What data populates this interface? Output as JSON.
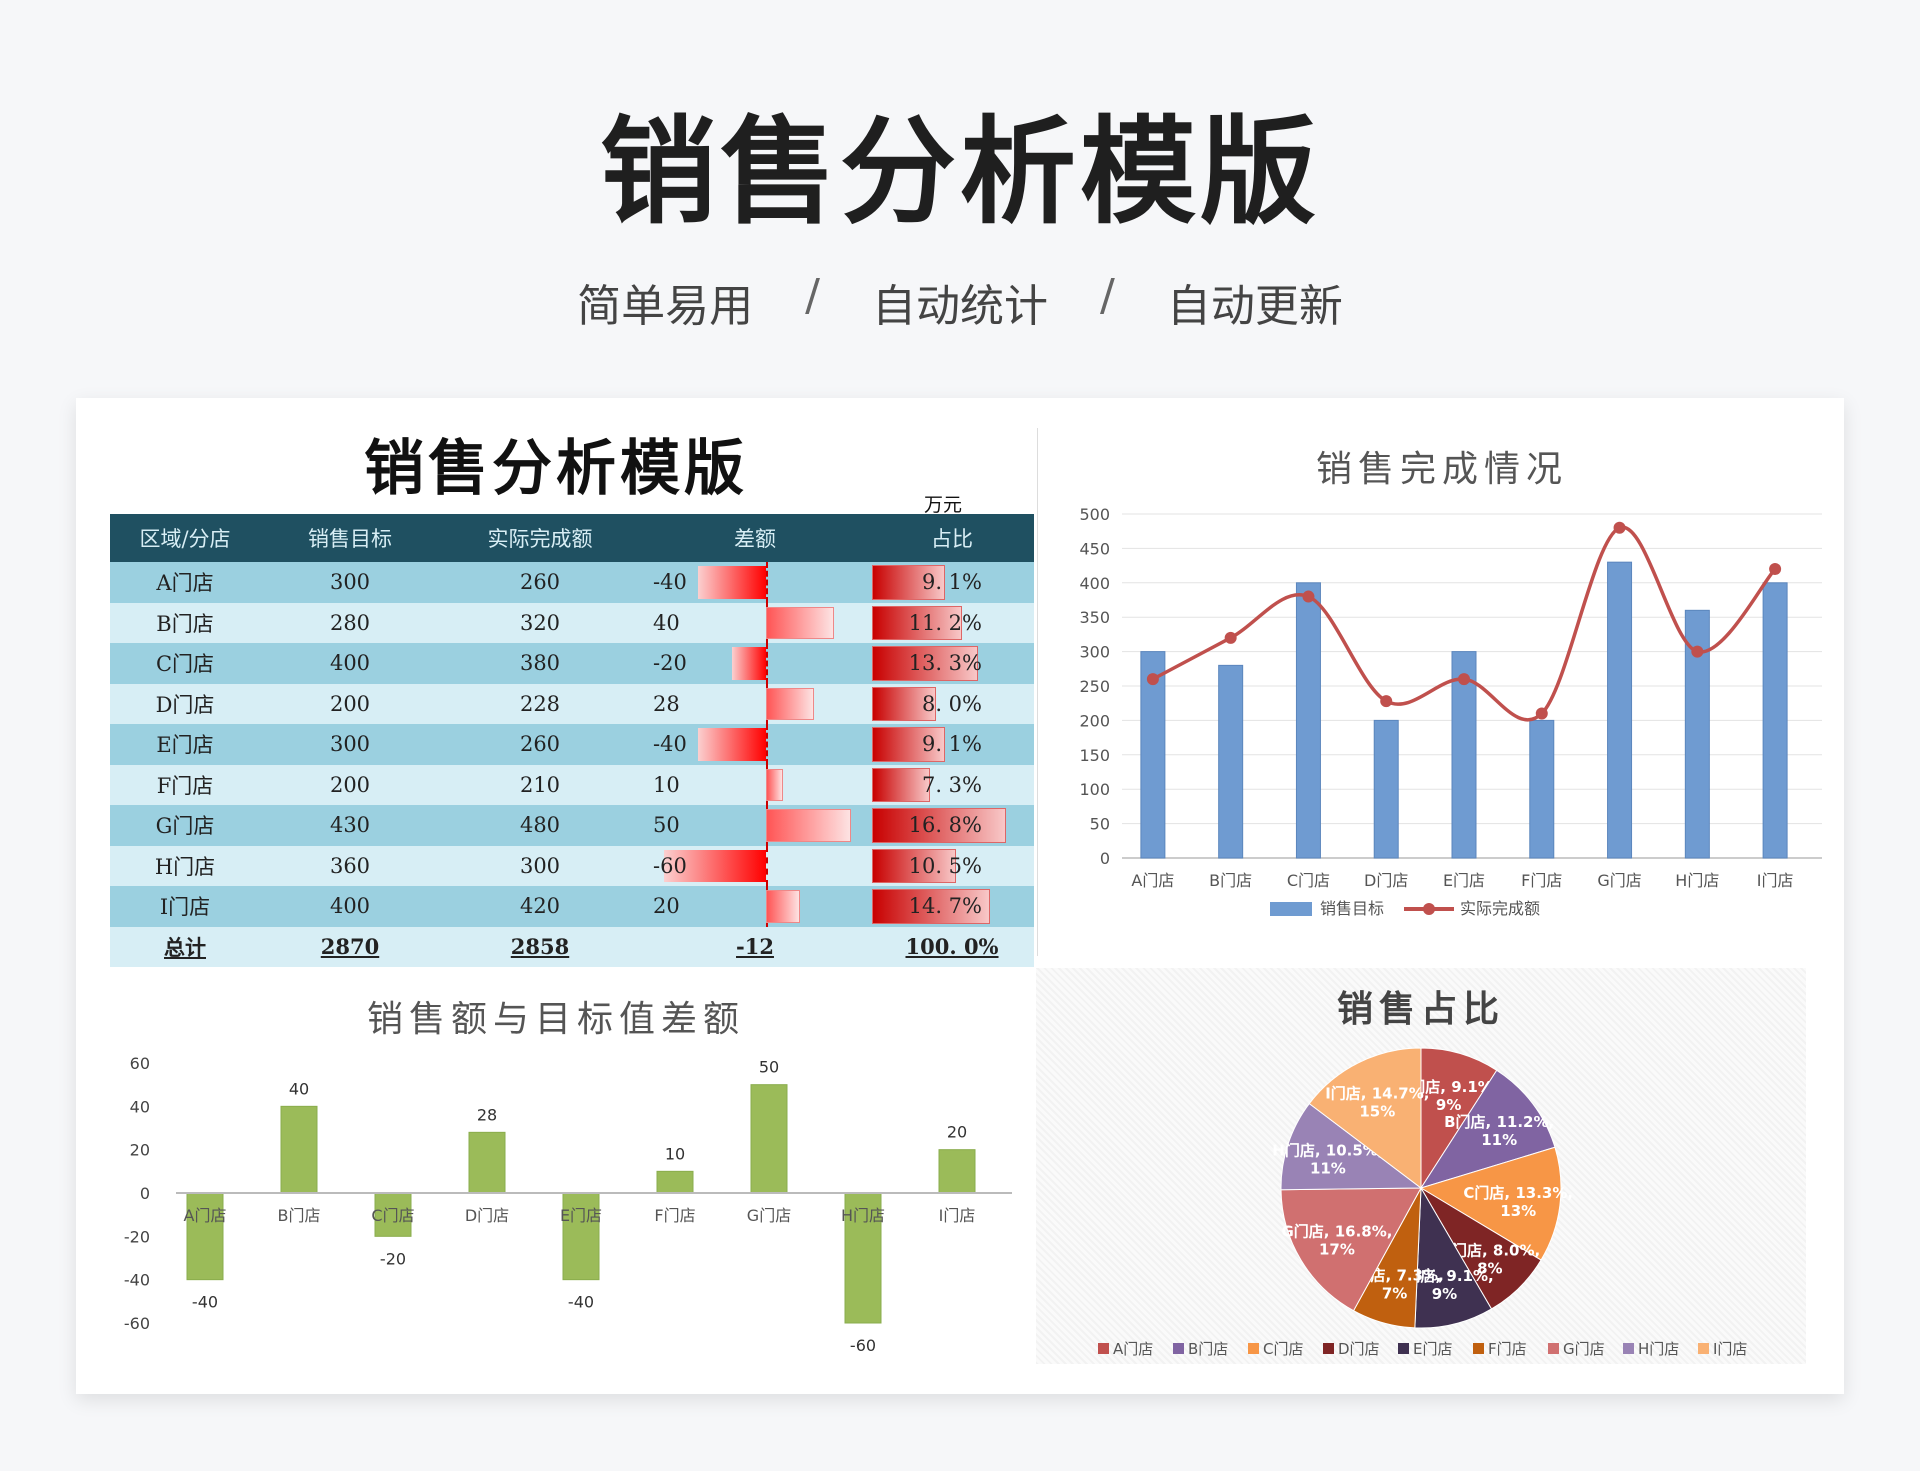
{
  "poster": {
    "title": "销售分析模版",
    "tags": [
      "简单易用",
      "自动统计",
      "自动更新"
    ],
    "separator": "/"
  },
  "sheet": {
    "title": "销售分析模版",
    "unit": "万元",
    "headers": [
      "区域/分店",
      "销售目标",
      "实际完成额",
      "差额",
      "占比"
    ],
    "rows": [
      {
        "name": "A门店",
        "target": "300",
        "actual": "260",
        "diff": "-40",
        "share": "9. 1%",
        "diff_value": -40,
        "share_value": 9.1
      },
      {
        "name": "B门店",
        "target": "280",
        "actual": "320",
        "diff": "40",
        "share": "11. 2%",
        "diff_value": 40,
        "share_value": 11.2
      },
      {
        "name": "C门店",
        "target": "400",
        "actual": "380",
        "diff": "-20",
        "share": "13. 3%",
        "diff_value": -20,
        "share_value": 13.3
      },
      {
        "name": "D门店",
        "target": "200",
        "actual": "228",
        "diff": "28",
        "share": "8. 0%",
        "diff_value": 28,
        "share_value": 8.0
      },
      {
        "name": "E门店",
        "target": "300",
        "actual": "260",
        "diff": "-40",
        "share": "9. 1%",
        "diff_value": -40,
        "share_value": 9.1
      },
      {
        "name": "F门店",
        "target": "200",
        "actual": "210",
        "diff": "10",
        "share": "7. 3%",
        "diff_value": 10,
        "share_value": 7.3
      },
      {
        "name": "G门店",
        "target": "430",
        "actual": "480",
        "diff": "50",
        "share": "16. 8%",
        "diff_value": 50,
        "share_value": 16.8
      },
      {
        "name": "H门店",
        "target": "360",
        "actual": "300",
        "diff": "-60",
        "share": "10. 5%",
        "diff_value": -60,
        "share_value": 10.5
      },
      {
        "name": "I门店",
        "target": "400",
        "actual": "420",
        "diff": "20",
        "share": "14. 7%",
        "diff_value": 20,
        "share_value": 14.7
      }
    ],
    "total": {
      "name": "总计",
      "target": "2870",
      "actual": "2858",
      "diff": "-12",
      "share": "100. 0%"
    }
  },
  "chart_data": [
    {
      "id": "completion",
      "type": "bar+line",
      "title": "销售完成情况",
      "categories": [
        "A门店",
        "B门店",
        "C门店",
        "D门店",
        "E门店",
        "F门店",
        "G门店",
        "H门店",
        "I门店"
      ],
      "series": [
        {
          "name": "销售目标",
          "type": "bar",
          "color": "#6f9bd1",
          "values": [
            300,
            280,
            400,
            200,
            300,
            200,
            430,
            360,
            400
          ]
        },
        {
          "name": "实际完成额",
          "type": "line",
          "color": "#c0504d",
          "values": [
            260,
            320,
            380,
            228,
            260,
            210,
            480,
            300,
            420
          ]
        }
      ],
      "ylim": [
        0,
        500
      ],
      "yticks": [
        0,
        50,
        100,
        150,
        200,
        250,
        300,
        350,
        400,
        450,
        500
      ],
      "grid": true,
      "legend": "bottom"
    },
    {
      "id": "difference",
      "type": "bar",
      "title": "销售额与目标值差额",
      "categories": [
        "A门店",
        "B门店",
        "C门店",
        "D门店",
        "E门店",
        "F门店",
        "G门店",
        "H门店",
        "I门店"
      ],
      "values": [
        -40,
        40,
        -20,
        28,
        -40,
        10,
        50,
        -60,
        20
      ],
      "color": "#9bbb59",
      "ylim": [
        -60,
        60
      ],
      "yticks": [
        60,
        40,
        20,
        0,
        -20,
        -40,
        -60
      ],
      "data_labels": true
    },
    {
      "id": "share",
      "type": "pie",
      "title": "销售占比",
      "categories": [
        "A门店",
        "B门店",
        "C门店",
        "D门店",
        "E门店",
        "F门店",
        "G门店",
        "H门店",
        "I门店"
      ],
      "values": [
        9.1,
        11.2,
        13.3,
        8.0,
        9.1,
        7.3,
        16.8,
        10.5,
        14.7
      ],
      "colors": [
        "#c0504d",
        "#8064a2",
        "#f79646",
        "#7f2525",
        "#3f3151",
        "#c0600f",
        "#d07070",
        "#9983b5",
        "#f9b173"
      ],
      "labels": [
        "A门店, 9.1%, 9%",
        "B门店, 11.2%, 11%",
        "C门店, 13.3%, 13%",
        "D门店, 8.0%, 8%",
        "E门店, 9.1%, 9%",
        "F门店, 7.3%, 7%",
        "G门店, 16.8%, 17%",
        "H门店, 10.5%, 11%",
        "I门店, 14.7%, 15%"
      ],
      "legend": "bottom"
    }
  ]
}
